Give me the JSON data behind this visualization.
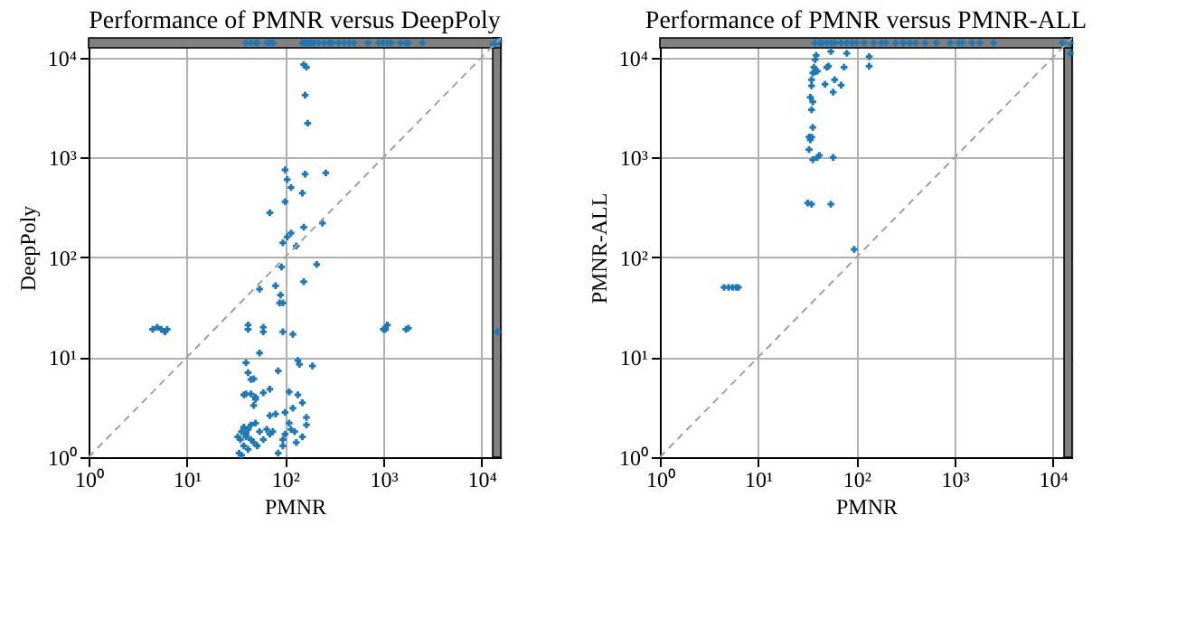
{
  "chart_data": [
    {
      "type": "scatter",
      "title": "Performance of PMNR versus DeepPoly",
      "xlabel": "PMNR",
      "ylabel": "DeepPoly",
      "log": "xy",
      "grid": true,
      "xlim": [
        1,
        15700
      ],
      "ylim": [
        1,
        15700
      ],
      "xticks": [
        {
          "value": 1,
          "label": "10⁰"
        },
        {
          "value": 10,
          "label": "10¹"
        },
        {
          "value": 100,
          "label": "10²"
        },
        {
          "value": 1000,
          "label": "10³"
        },
        {
          "value": 10000,
          "label": "10⁴"
        }
      ],
      "yticks": [
        {
          "value": 1,
          "label": "10⁰"
        },
        {
          "value": 10,
          "label": "10¹"
        },
        {
          "value": 100,
          "label": "10²"
        },
        {
          "value": 1000,
          "label": "10³"
        },
        {
          "value": 10000,
          "label": "10⁴"
        }
      ],
      "bands": [
        {
          "axis": "x",
          "from": 13000,
          "to": 15700,
          "color": "#808080"
        },
        {
          "axis": "y",
          "from": 12500,
          "to": 15700,
          "color": "#808080"
        }
      ],
      "series": [
        {
          "color": "#1f77b4",
          "marker": "cross",
          "x": [
            40,
            45,
            50,
            52,
            65,
            70,
            75,
            150,
            160,
            170,
            180,
            190,
            200,
            220,
            250,
            280,
            300,
            350,
            400,
            450,
            500,
            700,
            900,
            1000,
            1100,
            1200,
            1500,
            1700,
            1800,
            2500,
            13000,
            14000,
            15000,
            155,
            165,
            160,
            170,
            100,
            105,
            115,
            160,
            260,
            70,
            100,
            150,
            155,
            115,
            95,
            105,
            130,
            240,
            210,
            155,
            92,
            80,
            90,
            88,
            95,
            55,
            95,
            120,
            60,
            60,
            42,
            42,
            55,
            85,
            135,
            140,
            190,
            40,
            42,
            45,
            48,
            60,
            70,
            50,
            110,
            135,
            150,
            40,
            38,
            45,
            50,
            48,
            100,
            120,
            165,
            165,
            70,
            80,
            35,
            36,
            38,
            40,
            42,
            45,
            48,
            50,
            55,
            60,
            65,
            70,
            75,
            95,
            100,
            110,
            115,
            125,
            130,
            150,
            34,
            36,
            38,
            42,
            85,
            95,
            40,
            45,
            52,
            33,
            4.5,
            5,
            5.5,
            6,
            6.3,
            1000,
            1050,
            1100,
            1700,
            1800,
            14500
          ],
          "values": [
            14000,
            14000,
            14000,
            14000,
            14000,
            14000,
            14000,
            14000,
            14000,
            14000,
            14000,
            14000,
            14000,
            14000,
            14000,
            14000,
            14000,
            14000,
            14000,
            14000,
            14000,
            14000,
            14000,
            14000,
            14000,
            14000,
            14000,
            14000,
            14000,
            14000,
            13500,
            14000,
            14500,
            8500,
            8000,
            4200,
            2200,
            750,
            600,
            500,
            680,
            700,
            280,
            360,
            440,
            200,
            175,
            140,
            160,
            130,
            220,
            85,
            57,
            80,
            52,
            42,
            35,
            35,
            48,
            18,
            17,
            20,
            18,
            21,
            19,
            11,
            7.3,
            9.3,
            8.5,
            8.2,
            8.8,
            7,
            6,
            6.1,
            4.4,
            4.8,
            4,
            4.5,
            4.2,
            3.5,
            4.3,
            4.2,
            4.3,
            3.8,
            3.3,
            2.8,
            3.1,
            2.5,
            2.1,
            2.6,
            2.7,
            1.5,
            1.8,
            2,
            1.6,
            1.9,
            2.1,
            1.4,
            2.2,
            1.8,
            1.5,
            1.9,
            1.7,
            1.8,
            1.5,
            1.7,
            2.2,
            1.9,
            1.8,
            1.4,
            1.6,
            1.1,
            1.05,
            1.3,
            1.2,
            1.1,
            1.3,
            1.7,
            1.5,
            1.3,
            1.6,
            19,
            20,
            19,
            18,
            19,
            19,
            19,
            21,
            19,
            19.5,
            18
          ]
        },
        {
          "type": "line",
          "color": "#a0a0a0",
          "line_style": "dashed",
          "x": [
            1,
            15700
          ],
          "values": [
            1,
            15700
          ]
        }
      ]
    },
    {
      "type": "scatter",
      "title": "Performance of PMNR versus PMNR-ALL",
      "xlabel": "PMNR",
      "ylabel": "PMNR-ALL",
      "log": "xy",
      "grid": true,
      "xlim": [
        1,
        15700
      ],
      "ylim": [
        1,
        15700
      ],
      "xticks": [
        {
          "value": 1,
          "label": "10⁰"
        },
        {
          "value": 10,
          "label": "10¹"
        },
        {
          "value": 100,
          "label": "10²"
        },
        {
          "value": 1000,
          "label": "10³"
        },
        {
          "value": 10000,
          "label": "10⁴"
        }
      ],
      "yticks": [
        {
          "value": 1,
          "label": "10⁰"
        },
        {
          "value": 10,
          "label": "10¹"
        },
        {
          "value": 100,
          "label": "10²"
        },
        {
          "value": 1000,
          "label": "10³"
        },
        {
          "value": 10000,
          "label": "10⁴"
        }
      ],
      "bands": [
        {
          "axis": "x",
          "from": 13000,
          "to": 15700,
          "color": "#808080"
        },
        {
          "axis": "y",
          "from": 12500,
          "to": 15700,
          "color": "#808080"
        }
      ],
      "series": [
        {
          "color": "#1f77b4",
          "marker": "cross",
          "x": [
            4.5,
            5,
            5.5,
            6,
            6.3,
            95,
            32,
            35,
            55,
            36,
            40,
            42,
            58,
            33,
            34,
            33,
            35,
            36,
            35,
            36,
            34,
            35,
            35,
            36,
            38,
            40,
            37,
            38,
            39,
            48,
            52,
            50,
            55,
            60,
            58,
            70,
            75,
            80,
            135,
            135,
            38,
            42,
            45,
            50,
            55,
            60,
            70,
            80,
            90,
            100,
            120,
            150,
            180,
            200,
            250,
            300,
            350,
            400,
            500,
            650,
            900,
            1100,
            1200,
            1500,
            1800,
            2500,
            12500,
            15000,
            15000
          ],
          "values": [
            50,
            50,
            50,
            50,
            50,
            120,
            350,
            340,
            340,
            950,
            1000,
            1050,
            1000,
            1200,
            1500,
            1600,
            1600,
            2000,
            3000,
            3600,
            4000,
            5200,
            6000,
            7000,
            7200,
            7300,
            8000,
            9500,
            10500,
            5400,
            8200,
            8000,
            11500,
            6000,
            4500,
            5300,
            8000,
            11000,
            10200,
            8200,
            14000,
            14000,
            14000,
            14000,
            14000,
            14000,
            14000,
            14000,
            14000,
            14000,
            14000,
            14000,
            14000,
            14000,
            14000,
            14000,
            14000,
            14000,
            14000,
            14000,
            14000,
            14000,
            14000,
            14000,
            14000,
            14000,
            14000,
            14000,
            11000
          ]
        },
        {
          "type": "line",
          "color": "#a0a0a0",
          "line_style": "dashed",
          "x": [
            1,
            15700
          ],
          "values": [
            1,
            15700
          ]
        }
      ]
    }
  ]
}
